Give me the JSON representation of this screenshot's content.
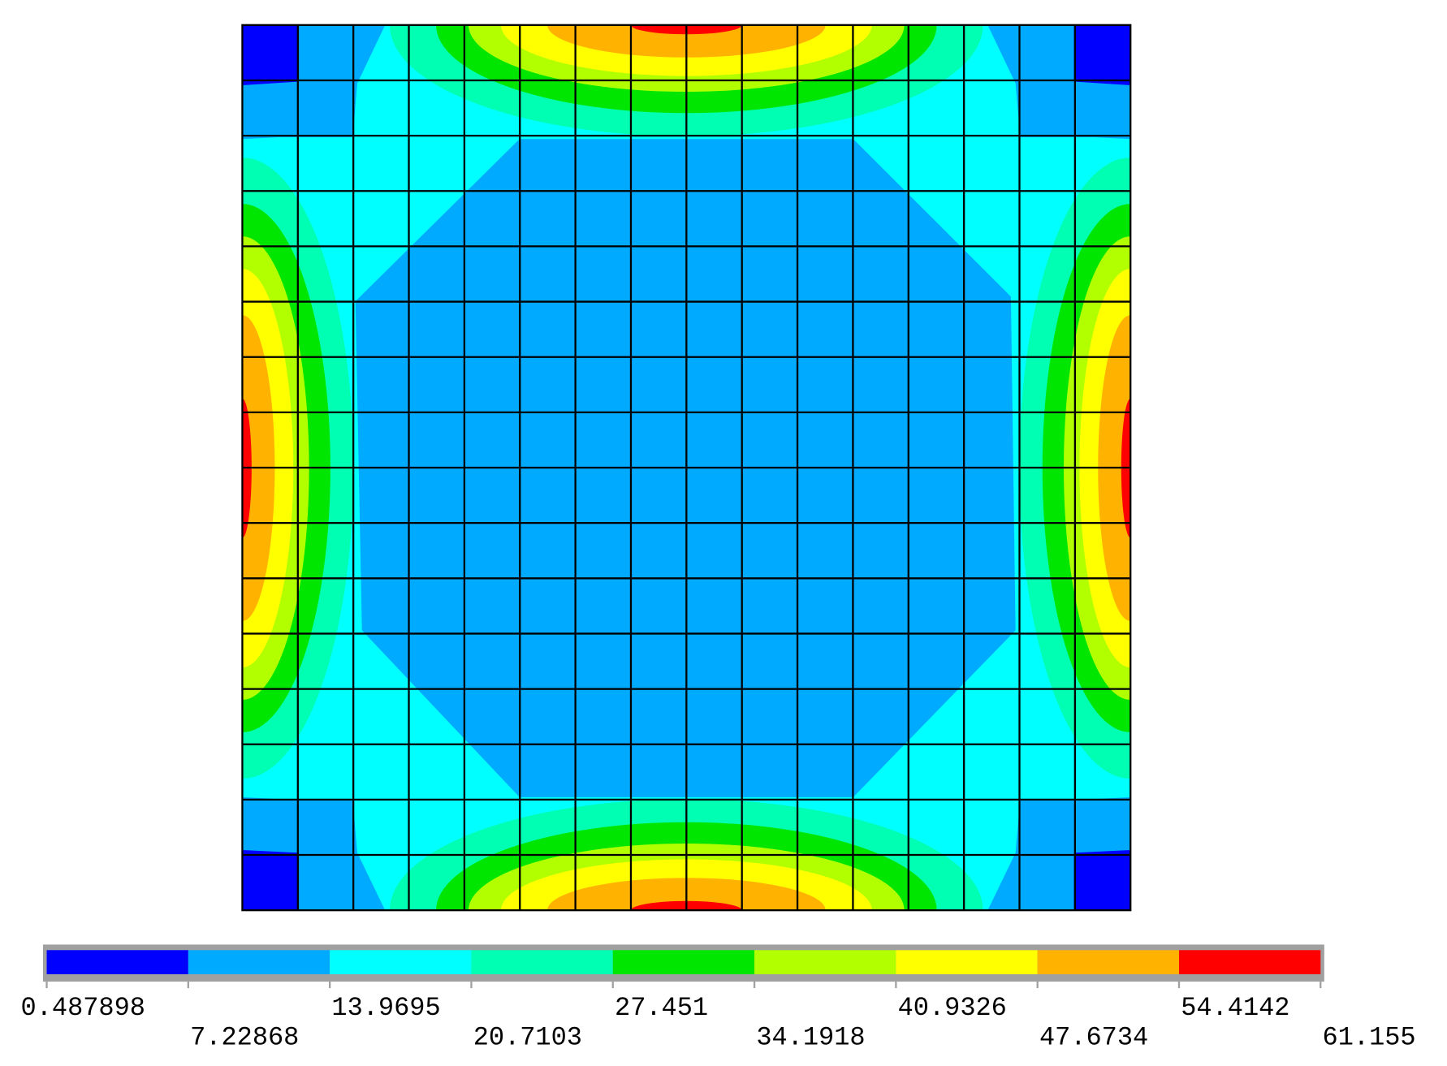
{
  "chart_data": {
    "type": "contour",
    "colorbar": {
      "levels": [
        0.487898,
        7.22868,
        13.9695,
        20.7103,
        27.451,
        34.1918,
        40.9326,
        47.6734,
        54.4142,
        61.155
      ],
      "colors": [
        "#0000ff",
        "#00aaff",
        "#00ffff",
        "#00ffb2",
        "#00e600",
        "#b2ff00",
        "#ffff00",
        "#ffb200",
        "#ff0000"
      ]
    },
    "grid": {
      "rows": 16,
      "cols": 16
    }
  }
}
